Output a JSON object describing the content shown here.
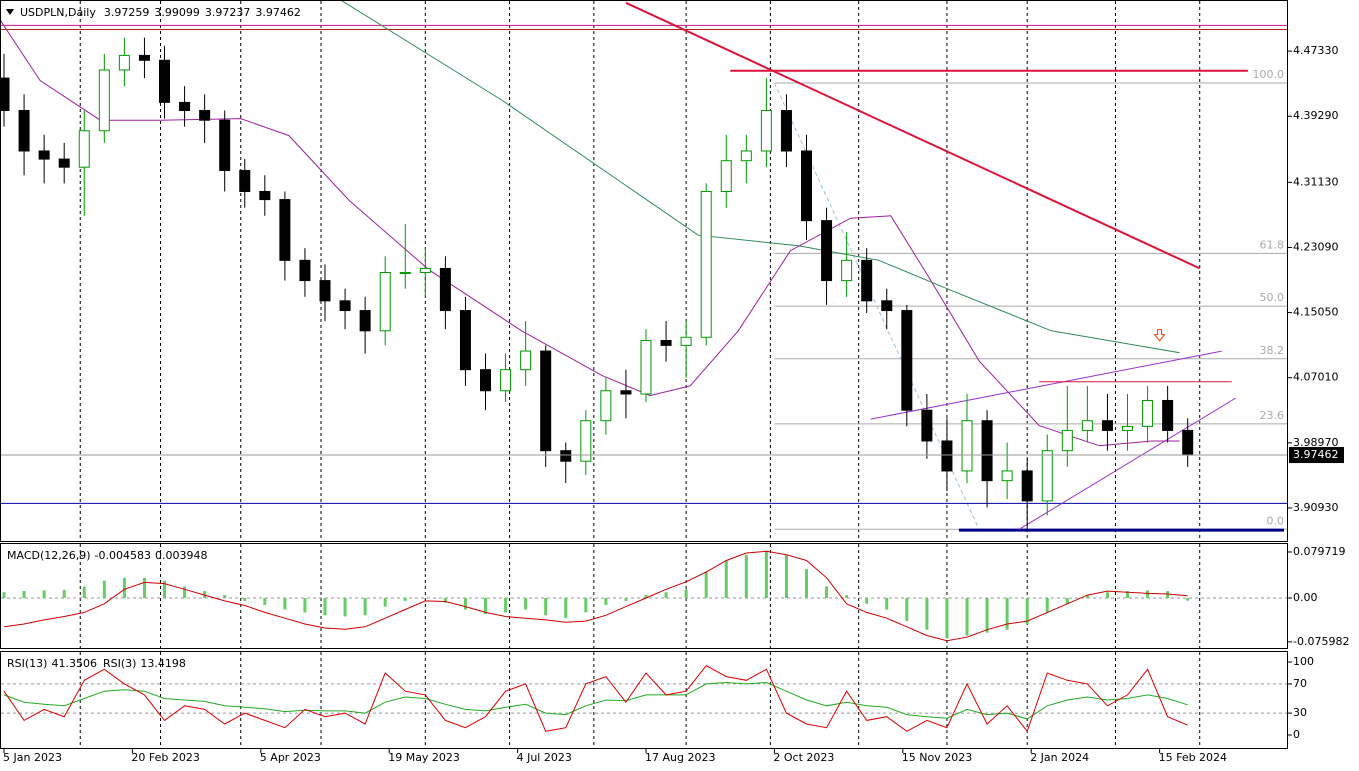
{
  "chart_data": [
    {
      "type": "candlestick",
      "title": "USDPLN,Daily",
      "ohlc": [
        3.97259,
        3.99099,
        3.97237,
        3.97462
      ],
      "up_color": "#009a00",
      "down_color": "#000000",
      "xlim": [
        -1,
        320
      ],
      "ylim": [
        3.8685,
        4.5364
      ],
      "yticks": [
        {
          "value": 4.4733,
          "label": "4.47330"
        },
        {
          "value": 4.3929,
          "label": "4.39290"
        },
        {
          "value": 4.3113,
          "label": "4.31130"
        },
        {
          "value": 4.2309,
          "label": "4.23090"
        },
        {
          "value": 4.1505,
          "label": "4.15050"
        },
        {
          "value": 4.0701,
          "label": "4.07010"
        },
        {
          "value": 3.9897,
          "label": "3.98970"
        },
        {
          "value": 3.9093,
          "label": "3.90930"
        }
      ],
      "vgrid": [
        19,
        39,
        59,
        79,
        105,
        126,
        147,
        170,
        191,
        213,
        235,
        255,
        277,
        298
      ],
      "x": [
        0,
        5,
        10,
        15,
        20,
        25,
        30,
        35,
        40,
        45,
        50,
        55,
        60,
        65,
        70,
        75,
        80,
        85,
        90,
        95,
        100,
        105,
        110,
        115,
        120,
        125,
        130,
        135,
        140,
        145,
        150,
        155,
        160,
        165,
        170,
        175,
        180,
        185,
        190,
        195,
        200,
        205,
        210,
        215,
        220,
        225,
        230,
        235,
        240,
        245,
        250,
        255,
        260,
        265,
        270,
        275,
        280,
        285,
        290,
        295
      ],
      "open": [
        4.44,
        4.4,
        4.35,
        4.34,
        4.33,
        4.375,
        4.45,
        4.468,
        4.462,
        4.41,
        4.4,
        4.388,
        4.326,
        4.3,
        4.29,
        4.215,
        4.19,
        4.165,
        4.153,
        4.128,
        4.2,
        4.2,
        4.205,
        4.153,
        4.08,
        4.054,
        4.08,
        4.103,
        3.98,
        3.967,
        4.017,
        4.054,
        4.05,
        4.116,
        4.11,
        4.12,
        4.3,
        4.338,
        4.35,
        4.4,
        4.35,
        4.264,
        4.19,
        4.215,
        4.165,
        4.153,
        4.03,
        3.992,
        3.955,
        4.017,
        3.943,
        3.955,
        3.918,
        3.98,
        4.005,
        4.017,
        4.005,
        4.01,
        4.042,
        4.005
      ],
      "high": [
        4.47,
        4.42,
        4.37,
        4.36,
        4.4,
        4.47,
        4.49,
        4.49,
        4.48,
        4.43,
        4.42,
        4.4,
        4.34,
        4.32,
        4.3,
        4.23,
        4.21,
        4.18,
        4.17,
        4.22,
        4.26,
        4.23,
        4.22,
        4.17,
        4.1,
        4.1,
        4.14,
        4.11,
        3.99,
        4.03,
        4.07,
        4.08,
        4.13,
        4.14,
        4.14,
        4.31,
        4.37,
        4.37,
        4.44,
        4.42,
        4.37,
        4.28,
        4.25,
        4.23,
        4.18,
        4.16,
        4.05,
        4.02,
        4.05,
        4.03,
        3.99,
        3.97,
        4.0,
        4.06,
        4.06,
        4.05,
        4.05,
        4.06,
        4.06,
        4.02
      ],
      "low": [
        4.38,
        4.32,
        4.31,
        4.31,
        4.27,
        4.36,
        4.43,
        4.44,
        4.39,
        4.38,
        4.36,
        4.3,
        4.28,
        4.27,
        4.19,
        4.17,
        4.14,
        4.13,
        4.1,
        4.11,
        4.18,
        4.17,
        4.13,
        4.06,
        4.03,
        4.04,
        4.06,
        3.96,
        3.94,
        3.95,
        4.0,
        4.02,
        4.04,
        4.09,
        4.07,
        4.11,
        4.28,
        4.31,
        4.33,
        4.33,
        4.24,
        4.16,
        4.17,
        4.15,
        4.13,
        4.01,
        3.97,
        3.93,
        3.94,
        3.91,
        3.92,
        3.88,
        3.9,
        3.96,
        3.99,
        3.98,
        3.98,
        3.99,
        3.99,
        3.96
      ],
      "close": [
        4.4,
        4.35,
        4.34,
        4.33,
        4.375,
        4.45,
        4.468,
        4.462,
        4.41,
        4.4,
        4.388,
        4.326,
        4.3,
        4.29,
        4.215,
        4.19,
        4.165,
        4.153,
        4.128,
        4.2,
        4.2,
        4.205,
        4.153,
        4.08,
        4.054,
        4.08,
        4.103,
        3.98,
        3.967,
        4.017,
        4.054,
        4.05,
        4.116,
        4.11,
        4.12,
        4.3,
        4.338,
        4.35,
        4.4,
        4.35,
        4.264,
        4.19,
        4.215,
        4.165,
        4.153,
        4.03,
        3.992,
        3.955,
        4.017,
        3.943,
        3.955,
        3.918,
        3.98,
        4.005,
        4.017,
        4.005,
        4.01,
        4.042,
        4.005,
        3.9746
      ],
      "overlays": [
        {
          "color": "#2e8b57",
          "x": [
            84,
            124,
            173,
            198,
            218,
            236,
            261,
            293
          ],
          "y": [
            4.536,
            4.413,
            4.246,
            4.233,
            4.215,
            4.178,
            4.128,
            4.101
          ]
        },
        {
          "color": "#a0209f",
          "x": [
            -1,
            9,
            24,
            39,
            59,
            71,
            86,
            106,
            129,
            149,
            161,
            171,
            183,
            196,
            211,
            221,
            231,
            243,
            258,
            273,
            286,
            293
          ],
          "y": [
            4.512,
            4.437,
            4.388,
            4.388,
            4.39,
            4.369,
            4.289,
            4.203,
            4.128,
            4.073,
            4.048,
            4.06,
            4.128,
            4.227,
            4.267,
            4.27,
            4.19,
            4.091,
            4.011,
            3.986,
            3.992,
            3.992
          ]
        }
      ],
      "hlines": [
        {
          "value": 4.505,
          "color": "#c71585"
        },
        {
          "value": 4.5,
          "color": "#b22222"
        },
        {
          "value": 3.915,
          "color": "#0000aa"
        }
      ],
      "segments": [
        {
          "color": "#dc143c",
          "width": 2,
          "x": [
            155,
            298
          ],
          "y": [
            4.533,
            4.205
          ]
        },
        {
          "color": "#dc143c",
          "width": 2,
          "x": [
            181,
            310
          ],
          "y": [
            4.449,
            4.449
          ]
        },
        {
          "color": "#00008b",
          "width": 3,
          "x": [
            238,
            319
          ],
          "y": [
            3.882,
            3.882
          ]
        },
        {
          "color": "#9932cc",
          "width": 1,
          "x": [
            216,
            303.5
          ],
          "y": [
            4.019,
            4.103
          ]
        },
        {
          "color": "#9932cc",
          "width": 1,
          "x": [
            253,
            307
          ],
          "y": [
            3.883,
            4.045
          ]
        },
        {
          "color": "#dc143c",
          "width": 1,
          "x": [
            258,
            306
          ],
          "y": [
            4.065,
            4.065
          ]
        }
      ],
      "fibo": {
        "high": 4.434,
        "low": 3.883,
        "x": [
          192,
          320
        ],
        "color": "#aaaaaa",
        "diag_color": "#9ac0dc",
        "levels": [
          {
            "value": 100,
            "label": "100.0"
          },
          61.8,
          {
            "value": 50,
            "label": "50.0"
          },
          38.2,
          23.6,
          {
            "value": 0,
            "label": "0.0"
          }
        ]
      },
      "arrow": {
        "x": 288,
        "y": 4.122,
        "color": "#ff3300"
      }
    },
    {
      "type": "macd",
      "label": "MACD(12,26,9)",
      "readout": [
        -0.004583,
        0.003948
      ],
      "xlim": [
        -1,
        320
      ],
      "ylim": [
        -0.0884,
        0.0953
      ],
      "yticks": [
        0.079719,
        {
          "value": 0,
          "label": "0.00"
        },
        -0.075982
      ],
      "levels": [
        0
      ],
      "x": [
        0,
        5,
        10,
        15,
        20,
        25,
        30,
        35,
        40,
        45,
        50,
        55,
        60,
        65,
        70,
        75,
        80,
        85,
        90,
        95,
        100,
        105,
        110,
        115,
        120,
        125,
        130,
        135,
        140,
        145,
        150,
        155,
        160,
        165,
        170,
        175,
        180,
        185,
        190,
        195,
        200,
        205,
        210,
        215,
        220,
        225,
        230,
        235,
        240,
        245,
        250,
        255,
        260,
        265,
        270,
        275,
        280,
        285,
        290,
        295
      ],
      "series": [
        {
          "color": "#66cc66",
          "values": [
            0.01,
            0.012,
            0.013,
            0.014,
            0.02,
            0.03,
            0.035,
            0.035,
            0.03,
            0.02,
            0.012,
            0.005,
            -0.005,
            -0.012,
            -0.02,
            -0.025,
            -0.03,
            -0.032,
            -0.03,
            -0.015,
            -0.005,
            0,
            -0.008,
            -0.02,
            -0.028,
            -0.025,
            -0.02,
            -0.03,
            -0.035,
            -0.025,
            -0.012,
            -0.005,
            0.005,
            0.01,
            0.015,
            0.045,
            0.065,
            0.075,
            0.082,
            0.075,
            0.05,
            0.02,
            0.005,
            -0.01,
            -0.02,
            -0.04,
            -0.055,
            -0.07,
            -0.065,
            -0.06,
            -0.055,
            -0.045,
            -0.025,
            -0.01,
            0.005,
            0.01,
            0.012,
            0.013,
            0.012,
            -0.004583
          ]
        },
        {
          "color": "#cc0000",
          "values": [
            -0.05,
            -0.045,
            -0.038,
            -0.032,
            -0.025,
            -0.01,
            0.015,
            0.027,
            0.025,
            0.015,
            0.005,
            -0.005,
            -0.013,
            -0.025,
            -0.035,
            -0.045,
            -0.052,
            -0.054,
            -0.05,
            -0.035,
            -0.02,
            -0.005,
            -0.006,
            -0.015,
            -0.025,
            -0.032,
            -0.035,
            -0.038,
            -0.042,
            -0.04,
            -0.03,
            -0.015,
            0,
            0.015,
            0.028,
            0.045,
            0.065,
            0.078,
            0.081,
            0.075,
            0.065,
            0.035,
            -0.01,
            -0.025,
            -0.035,
            -0.05,
            -0.065,
            -0.074,
            -0.068,
            -0.055,
            -0.045,
            -0.04,
            -0.025,
            -0.01,
            0.005,
            0.012,
            0.01,
            0.008,
            0.007,
            0.003948
          ]
        }
      ]
    },
    {
      "type": "line",
      "label": [
        "RSI(13)",
        "RSI(3)"
      ],
      "readout": [
        41.3506,
        13.4198
      ],
      "xlim": [
        -1,
        320
      ],
      "ylim": [
        -19.2,
        115.1
      ],
      "yticks": [
        100,
        70,
        30,
        0
      ],
      "levels": [
        70,
        30
      ],
      "xticks": [
        {
          "value": 0,
          "label": "5 Jan 2023"
        },
        {
          "value": 32,
          "label": "20 Feb 2023"
        },
        {
          "value": 64,
          "label": "5 Apr 2023"
        },
        {
          "value": 96,
          "label": "19 May 2023"
        },
        {
          "value": 128,
          "label": "4 Jul 2023"
        },
        {
          "value": 160,
          "label": "17 Aug 2023"
        },
        {
          "value": 192,
          "label": "2 Oct 2023"
        },
        {
          "value": 224,
          "label": "15 Nov 2023"
        },
        {
          "value": 256,
          "label": "2 Jan 2024"
        },
        {
          "value": 288,
          "label": "15 Feb 2024"
        }
      ],
      "x": [
        0,
        5,
        10,
        15,
        20,
        25,
        30,
        35,
        40,
        45,
        50,
        55,
        60,
        65,
        70,
        75,
        80,
        85,
        90,
        95,
        100,
        105,
        110,
        115,
        120,
        125,
        130,
        135,
        140,
        145,
        150,
        155,
        160,
        165,
        170,
        175,
        180,
        185,
        190,
        195,
        200,
        205,
        210,
        215,
        220,
        225,
        230,
        235,
        240,
        245,
        250,
        255,
        260,
        265,
        270,
        275,
        280,
        285,
        290,
        295
      ],
      "series": [
        {
          "color": "#22aa22",
          "values": [
            55,
            45,
            42,
            40,
            50,
            60,
            62,
            60,
            50,
            48,
            46,
            40,
            38,
            36,
            32,
            34,
            33,
            33,
            30,
            45,
            52,
            50,
            42,
            35,
            33,
            38,
            42,
            30,
            28,
            40,
            48,
            47,
            55,
            55,
            55,
            70,
            72,
            70,
            72,
            60,
            48,
            40,
            45,
            40,
            38,
            28,
            25,
            23,
            35,
            28,
            30,
            22,
            40,
            48,
            52,
            48,
            50,
            55,
            50,
            41.3506
          ]
        },
        {
          "color": "#dd0000",
          "values": [
            60,
            20,
            35,
            25,
            75,
            90,
            70,
            55,
            20,
            40,
            35,
            15,
            30,
            20,
            10,
            35,
            25,
            30,
            15,
            85,
            60,
            55,
            20,
            10,
            25,
            60,
            70,
            5,
            10,
            70,
            80,
            45,
            85,
            55,
            60,
            95,
            80,
            75,
            90,
            30,
            15,
            10,
            60,
            20,
            25,
            5,
            20,
            10,
            70,
            15,
            40,
            5,
            85,
            75,
            70,
            40,
            55,
            90,
            25,
            13.4198
          ]
        }
      ]
    }
  ]
}
